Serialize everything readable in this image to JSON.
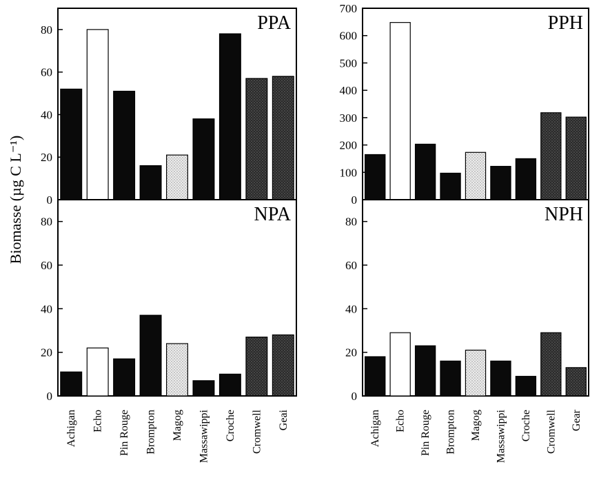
{
  "ylabel": "Biomasse (µg C L⁻¹)",
  "colors": {
    "black": "#0a0a0a",
    "white": "#ffffff",
    "light": "#d6d6d6",
    "dark": "#3a3a3a"
  },
  "chart_data": [
    {
      "type": "bar",
      "title": "PPA",
      "categories": [
        "Achigan",
        "Echo",
        "Pin Rouge",
        "Brompton",
        "Magog",
        "Massawippi",
        "Croche",
        "Cromwell",
        "Geai"
      ],
      "values": [
        52,
        80,
        51,
        16,
        21,
        38,
        78,
        57,
        58
      ],
      "fills": [
        "black",
        "white",
        "black",
        "black",
        "light",
        "black",
        "black",
        "dark",
        "dark"
      ],
      "ylim": [
        0,
        90
      ],
      "yticks": [
        0,
        20,
        40,
        60,
        80
      ]
    },
    {
      "type": "bar",
      "title": "PPH",
      "categories": [
        "Achigan",
        "Echo",
        "Pin Rouge",
        "Brompton",
        "Magog",
        "Massawippi",
        "Croche",
        "Cromwell",
        "Gear"
      ],
      "values": [
        165,
        648,
        203,
        97,
        173,
        122,
        150,
        318,
        302
      ],
      "fills": [
        "black",
        "white",
        "black",
        "black",
        "light",
        "black",
        "black",
        "dark",
        "dark"
      ],
      "ylim": [
        0,
        700
      ],
      "yticks": [
        0,
        100,
        200,
        300,
        400,
        500,
        600,
        700
      ]
    },
    {
      "type": "bar",
      "title": "NPA",
      "categories": [
        "Achigan",
        "Echo",
        "Pin Rouge",
        "Brompton",
        "Magog",
        "Massawippi",
        "Croche",
        "Cromwell",
        "Geai"
      ],
      "values": [
        11,
        22,
        17,
        37,
        24,
        7,
        10,
        27,
        28
      ],
      "fills": [
        "black",
        "white",
        "black",
        "black",
        "light",
        "black",
        "black",
        "dark",
        "dark"
      ],
      "ylim": [
        0,
        90
      ],
      "yticks": [
        0,
        20,
        40,
        60,
        80
      ]
    },
    {
      "type": "bar",
      "title": "NPH",
      "categories": [
        "Achigan",
        "Echo",
        "Pin Rouge",
        "Brompton",
        "Magog",
        "Massawippi",
        "Croche",
        "Cromwell",
        "Gear"
      ],
      "values": [
        18,
        29,
        23,
        16,
        21,
        16,
        9,
        29,
        13
      ],
      "fills": [
        "black",
        "white",
        "black",
        "black",
        "light",
        "black",
        "black",
        "dark",
        "dark"
      ],
      "ylim": [
        0,
        90
      ],
      "yticks": [
        0,
        20,
        40,
        60,
        80
      ]
    }
  ]
}
